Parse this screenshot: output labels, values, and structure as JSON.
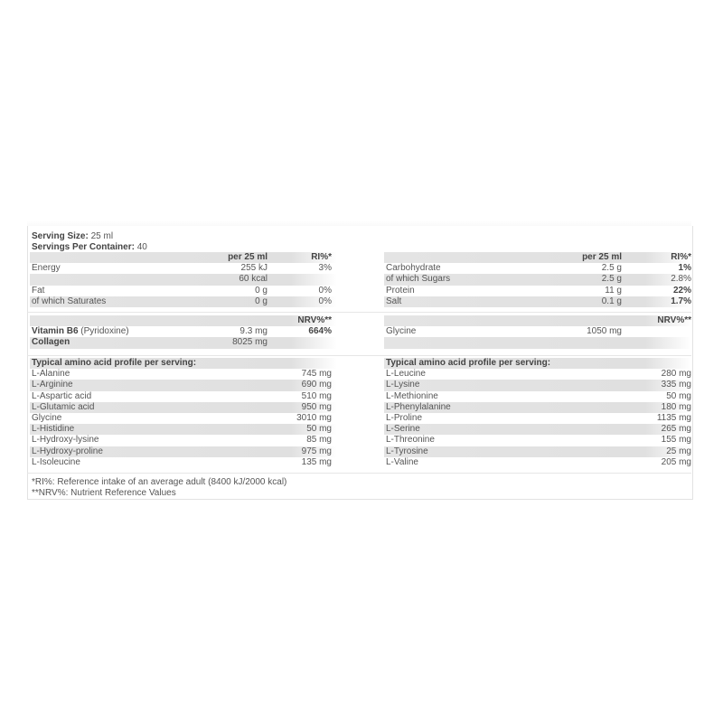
{
  "serving": {
    "size_label": "Serving Size:",
    "size_value": " 25 ml",
    "per_container_label": "Servings Per Container:",
    "per_container_value": " 40"
  },
  "left_nutrition": {
    "header": {
      "per": "per 25 ml",
      "ri": "RI%*"
    },
    "rows": [
      {
        "name": "Energy",
        "value": "255 kJ",
        "ri": "3%",
        "bold": true
      },
      {
        "name": "",
        "value": "60 kcal",
        "ri": ""
      },
      {
        "name": "Fat",
        "value": "0 g",
        "ri": "0%",
        "bold": true
      },
      {
        "name": "of which Saturates",
        "value": "0 g",
        "ri": "0%"
      }
    ]
  },
  "right_nutrition": {
    "header": {
      "per": "per 25 ml",
      "ri": "RI%*"
    },
    "rows": [
      {
        "name": "Carbohydrate",
        "value": "2.5 g",
        "ri": "1%",
        "bold": true
      },
      {
        "name": "of which Sugars",
        "value": "2.5 g",
        "ri": "2.8%"
      },
      {
        "name": "Protein",
        "value": "11 g",
        "ri": "22%",
        "bold": true
      },
      {
        "name": "Salt",
        "value": "0.1 g",
        "ri": "1.7%",
        "bold": true
      }
    ]
  },
  "left_nrv": {
    "header": "NRV%**",
    "rows": [
      {
        "name": "Vitamin B6",
        "note": " (Pyridoxine)",
        "value": "9.3 mg",
        "nrv": "664%"
      },
      {
        "name": "Collagen",
        "note": "",
        "value": "8025 mg",
        "nrv": ""
      }
    ]
  },
  "right_nrv": {
    "header": "NRV%**",
    "rows": [
      {
        "name": "Glycine",
        "value": "1050 mg"
      }
    ]
  },
  "left_amino": {
    "title": "Typical amino acid profile per serving:",
    "rows": [
      {
        "name": "L-Alanine",
        "value": "745 mg"
      },
      {
        "name": "L-Arginine",
        "value": "690 mg"
      },
      {
        "name": "L-Aspartic acid",
        "value": "510 mg"
      },
      {
        "name": "L-Glutamic acid",
        "value": "950 mg"
      },
      {
        "name": "Glycine",
        "value": "3010 mg"
      },
      {
        "name": "L-Histidine",
        "value": "50 mg"
      },
      {
        "name": "L-Hydroxy-lysine",
        "value": "85 mg"
      },
      {
        "name": "L-Hydroxy-proline",
        "value": "975 mg"
      },
      {
        "name": "L-Isoleucine",
        "value": "135 mg"
      }
    ]
  },
  "right_amino": {
    "title": "Typical amino acid profile per serving:",
    "rows": [
      {
        "name": "L-Leucine",
        "value": "280 mg"
      },
      {
        "name": "L-Lysine",
        "value": "335 mg"
      },
      {
        "name": "L-Methionine",
        "value": "50 mg"
      },
      {
        "name": "L-Phenylalanine",
        "value": "180 mg"
      },
      {
        "name": "L-Proline",
        "value": "1135 mg"
      },
      {
        "name": "L-Serine",
        "value": "265 mg"
      },
      {
        "name": "L-Threonine",
        "value": "155 mg"
      },
      {
        "name": "L-Tyrosine",
        "value": "25 mg"
      },
      {
        "name": "L-Valine",
        "value": "205 mg"
      }
    ]
  },
  "footnotes": [
    "*RI%: Reference intake of an average adult (8400 kJ/2000 kcal)",
    "**NRV%: Nutrient Reference Values"
  ]
}
